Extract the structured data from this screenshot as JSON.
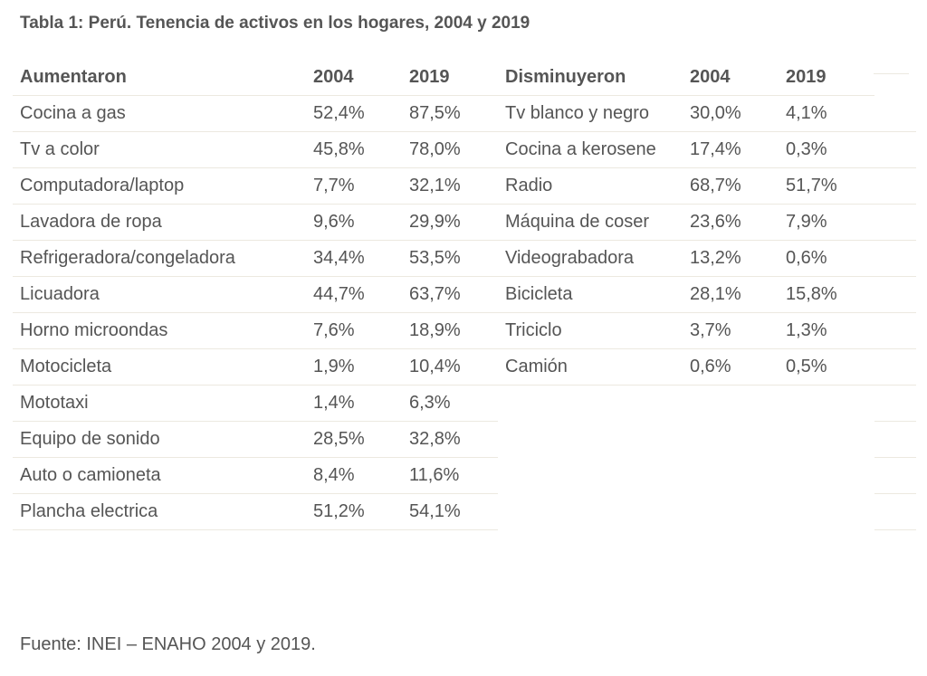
{
  "title": "Tabla 1: Perú. Tenencia de activos en los hogares, 2004 y 2019",
  "headers": [
    "Aumentaron",
    "2004",
    "2019",
    "Disminuyeron",
    "2004",
    "2019",
    ""
  ],
  "rows": [
    [
      "Cocina a gas",
      "52,4%",
      "87,5%",
      "Tv blanco y negro",
      "30,0%",
      "4,1%"
    ],
    [
      "Tv a color",
      "45,8%",
      "78,0%",
      "Cocina a kerosene",
      "17,4%",
      "0,3%"
    ],
    [
      "Computadora/laptop",
      "7,7%",
      "32,1%",
      "Radio",
      "68,7%",
      "51,7%"
    ],
    [
      "Lavadora de ropa",
      "9,6%",
      "29,9%",
      "Máquina de coser",
      "23,6%",
      "7,9%"
    ],
    [
      "Refrigeradora/congeladora",
      "34,4%",
      "53,5%",
      "Videograbadora",
      "13,2%",
      "0,6%"
    ],
    [
      "Licuadora",
      "44,7%",
      "63,7%",
      "Bicicleta",
      "28,1%",
      "15,8%"
    ],
    [
      "Horno microondas",
      "7,6%",
      "18,9%",
      "Triciclo",
      "3,7%",
      "1,3%"
    ],
    [
      "Motocicleta",
      "1,9%",
      "10,4%",
      "Camión",
      "0,6%",
      "0,5%"
    ],
    [
      "Mototaxi",
      "1,4%",
      "6,3%",
      "",
      "",
      ""
    ],
    [
      "Equipo de sonido",
      "28,5%",
      "32,8%",
      "",
      "",
      ""
    ],
    [
      "Auto o camioneta",
      "8,4%",
      "11,6%",
      "",
      "",
      ""
    ],
    [
      "Plancha electrica",
      "51,2%",
      "54,1%",
      "",
      "",
      ""
    ]
  ],
  "source": "Fuente: INEI – ENAHO 2004 y 2019."
}
